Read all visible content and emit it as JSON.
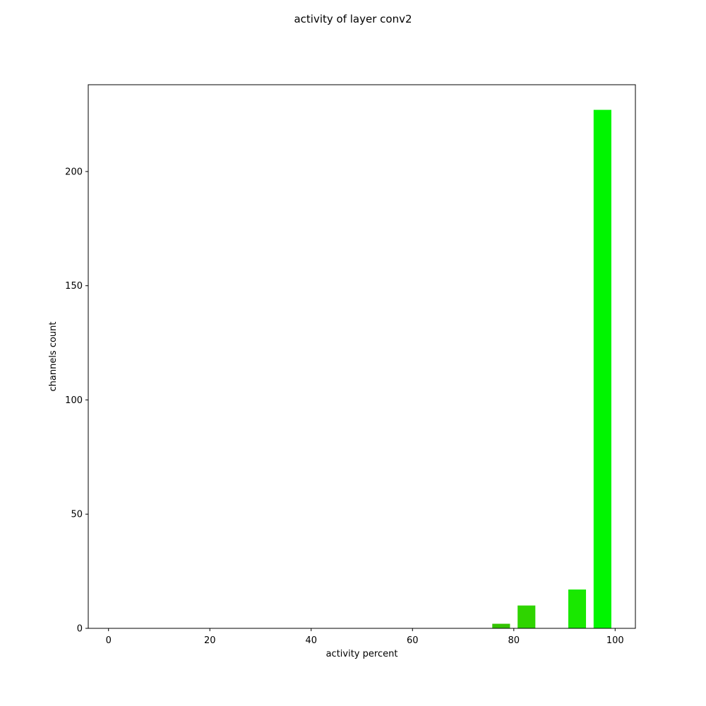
{
  "chart_data": {
    "type": "bar",
    "title": "activity of layer conv2",
    "xlabel": "activity percent",
    "ylabel": "channels count",
    "xlim": [
      -4,
      104
    ],
    "ylim": [
      0,
      238
    ],
    "xticks": [
      0,
      20,
      40,
      60,
      80,
      100
    ],
    "yticks": [
      0,
      50,
      100,
      150,
      200
    ],
    "bar_width": 3.5,
    "bars": [
      {
        "x": 77.5,
        "value": 2,
        "color": "#33c400"
      },
      {
        "x": 82.5,
        "value": 10,
        "color": "#2fd400"
      },
      {
        "x": 92.5,
        "value": 17,
        "color": "#19e800"
      },
      {
        "x": 97.5,
        "value": 227,
        "color": "#00f500"
      }
    ],
    "grid": false,
    "legend": false
  }
}
